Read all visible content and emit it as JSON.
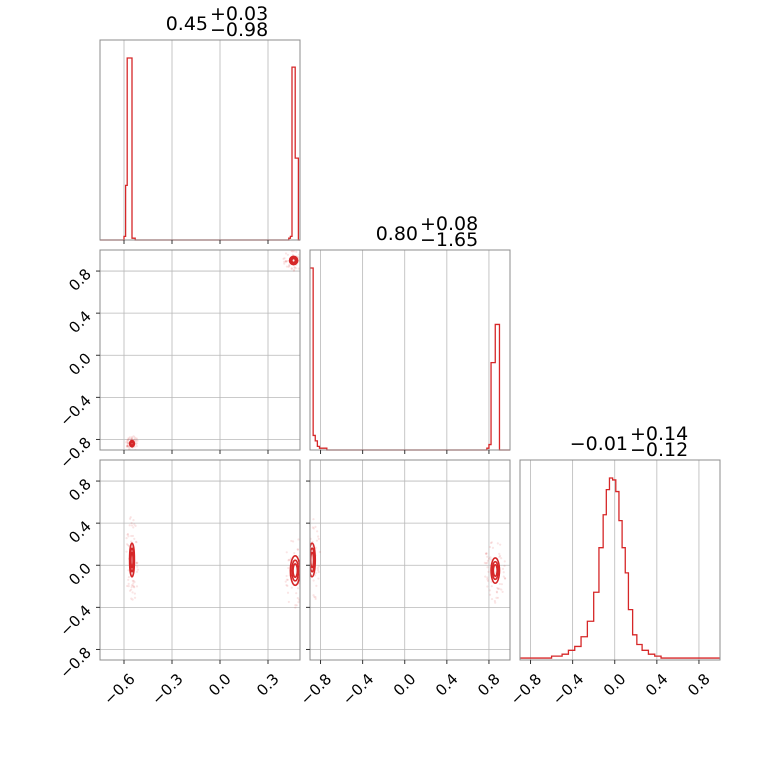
{
  "chart_data": {
    "type": "corner",
    "color": "#d62728",
    "parameters": [
      {
        "range": [
          -0.75,
          0.5
        ],
        "ticks": [
          -0.6,
          -0.3,
          0.0,
          0.3
        ],
        "tick_labels": [
          "−0.6",
          "−0.3",
          "0.0",
          "0.3"
        ]
      },
      {
        "range": [
          -0.9,
          1.0
        ],
        "ticks": [
          -0.8,
          -0.4,
          0.0,
          0.4,
          0.8
        ],
        "tick_labels": [
          "−0.8",
          "−0.4",
          "0.0",
          "0.4",
          "0.8"
        ]
      },
      {
        "range": [
          -0.9,
          1.0
        ],
        "ticks": [
          -0.8,
          -0.4,
          0.0,
          0.4,
          0.8
        ],
        "tick_labels": [
          "−0.8",
          "−0.4",
          "0.0",
          "0.4",
          "0.8"
        ]
      }
    ],
    "titles": [
      {
        "median": "0.45",
        "plus": "+0.03",
        "minus": "−0.98"
      },
      {
        "median": "0.80",
        "plus": "+0.08",
        "minus": "−1.65"
      },
      {
        "median": "−0.01",
        "plus": "+0.14",
        "minus": "−0.12"
      }
    ],
    "histograms": [
      {
        "edges": [
          -0.75,
          -0.6,
          -0.59,
          -0.58,
          -0.56,
          -0.55,
          -0.54,
          -0.53,
          -0.52,
          0.43,
          0.44,
          0.45,
          0.46,
          0.47,
          0.48,
          0.49,
          0.5
        ],
        "counts": [
          0,
          2,
          30,
          100,
          100,
          1,
          1,
          0,
          0,
          1,
          2,
          95,
          95,
          45,
          45,
          0
        ]
      },
      {
        "edges": [
          -0.9,
          -0.87,
          -0.85,
          -0.83,
          -0.81,
          -0.78,
          -0.74,
          -0.7,
          -0.66,
          0.78,
          0.8,
          0.82,
          0.84,
          0.86,
          0.88,
          0.9,
          1.0
        ],
        "counts": [
          100,
          8,
          5,
          2,
          1,
          1,
          0,
          0,
          0,
          1,
          3,
          48,
          48,
          69,
          69,
          0
        ]
      },
      {
        "edges": [
          -0.9,
          -0.8,
          -0.7,
          -0.6,
          -0.5,
          -0.44,
          -0.38,
          -0.32,
          -0.26,
          -0.2,
          -0.15,
          -0.11,
          -0.08,
          -0.05,
          -0.02,
          0.01,
          0.04,
          0.07,
          0.1,
          0.13,
          0.17,
          0.21,
          0.26,
          0.32,
          0.38,
          0.44,
          0.5,
          0.6,
          0.7,
          0.8,
          0.9,
          1.0
        ],
        "counts": [
          1,
          1,
          1,
          2,
          3,
          5,
          7,
          12,
          20,
          35,
          58,
          75,
          88,
          94,
          93,
          87,
          72,
          58,
          45,
          26,
          13,
          8,
          5,
          3,
          2,
          1,
          1,
          1,
          1,
          1,
          1
        ]
      }
    ],
    "contours": [
      {
        "row": 1,
        "col": 0,
        "regions": [
          {
            "cx": 0.46,
            "cy": 0.9,
            "rx": 0.025,
            "ry": 0.04
          },
          {
            "cx": -0.55,
            "cy": -0.84,
            "rx": 0.015,
            "ry": 0.03
          }
        ]
      },
      {
        "row": 2,
        "col": 0,
        "regions": [
          {
            "cx": -0.55,
            "cy": 0.05,
            "rx": 0.015,
            "ry": 0.16
          },
          {
            "cx": 0.47,
            "cy": -0.05,
            "rx": 0.03,
            "ry": 0.14
          }
        ]
      },
      {
        "row": 2,
        "col": 1,
        "regions": [
          {
            "cx": -0.88,
            "cy": 0.05,
            "rx": 0.03,
            "ry": 0.16
          },
          {
            "cx": 0.86,
            "cy": -0.05,
            "rx": 0.04,
            "ry": 0.12
          }
        ]
      }
    ]
  }
}
